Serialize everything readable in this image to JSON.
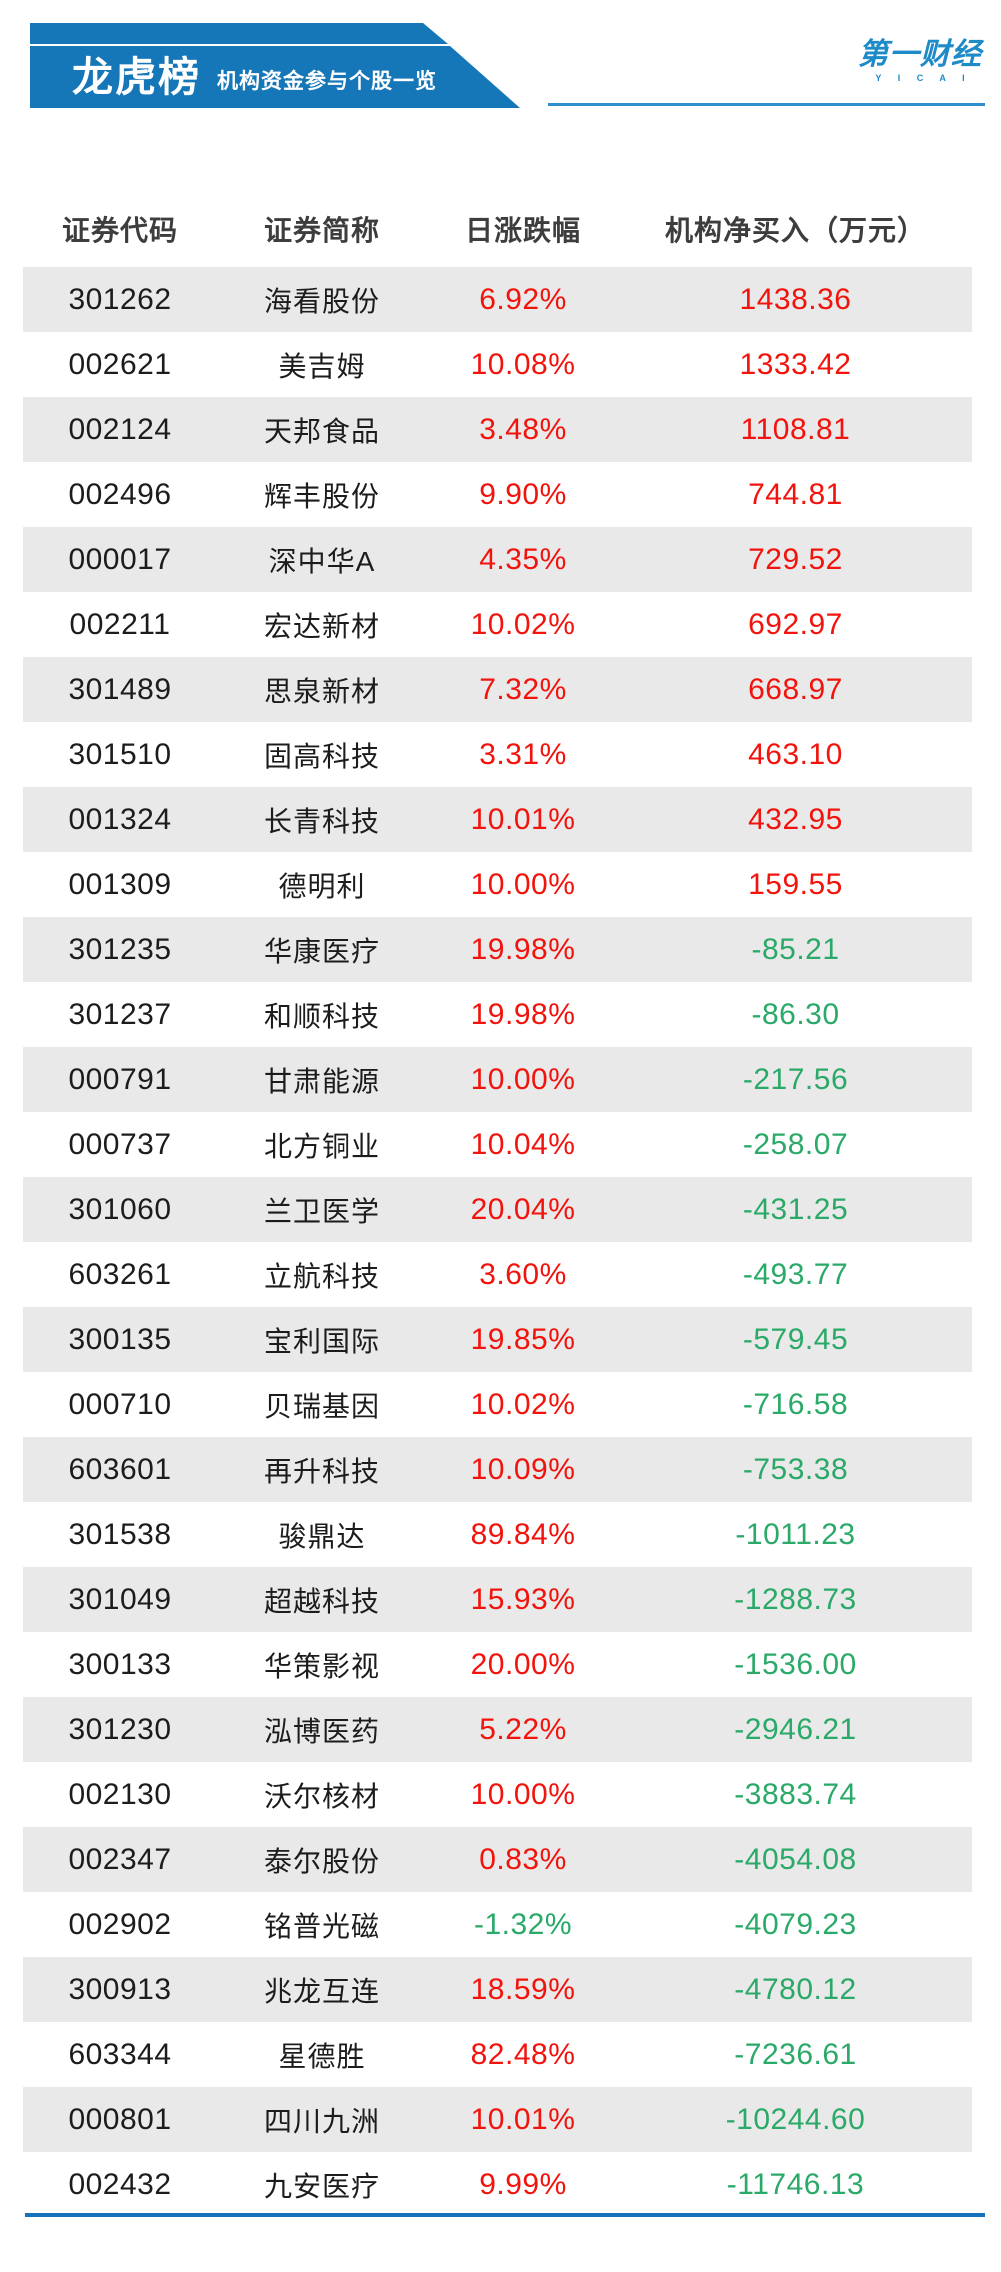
{
  "header": {
    "title": "龙虎榜",
    "subtitle": "机构资金参与个股一览",
    "logo_text": "第一财经",
    "logo_sub": "Y I C A I"
  },
  "chart_data": {
    "type": "table",
    "title": "龙虎榜 机构资金参与个股一览",
    "columns": [
      "证券代码",
      "证券简称",
      "日涨跌幅",
      "机构净买入（万元）"
    ],
    "rows": [
      [
        "301262",
        "海看股份",
        "6.92%",
        "1438.36"
      ],
      [
        "002621",
        "美吉姆",
        "10.08%",
        "1333.42"
      ],
      [
        "002124",
        "天邦食品",
        "3.48%",
        "1108.81"
      ],
      [
        "002496",
        "辉丰股份",
        "9.90%",
        "744.81"
      ],
      [
        "000017",
        "深中华A",
        "4.35%",
        "729.52"
      ],
      [
        "002211",
        "宏达新材",
        "10.02%",
        "692.97"
      ],
      [
        "301489",
        "思泉新材",
        "7.32%",
        "668.97"
      ],
      [
        "301510",
        "固高科技",
        "3.31%",
        "463.10"
      ],
      [
        "001324",
        "长青科技",
        "10.01%",
        "432.95"
      ],
      [
        "001309",
        "德明利",
        "10.00%",
        "159.55"
      ],
      [
        "301235",
        "华康医疗",
        "19.98%",
        "-85.21"
      ],
      [
        "301237",
        "和顺科技",
        "19.98%",
        "-86.30"
      ],
      [
        "000791",
        "甘肃能源",
        "10.00%",
        "-217.56"
      ],
      [
        "000737",
        "北方铜业",
        "10.04%",
        "-258.07"
      ],
      [
        "301060",
        "兰卫医学",
        "20.04%",
        "-431.25"
      ],
      [
        "603261",
        "立航科技",
        "3.60%",
        "-493.77"
      ],
      [
        "300135",
        "宝利国际",
        "19.85%",
        "-579.45"
      ],
      [
        "000710",
        "贝瑞基因",
        "10.02%",
        "-716.58"
      ],
      [
        "603601",
        "再升科技",
        "10.09%",
        "-753.38"
      ],
      [
        "301538",
        "骏鼎达",
        "89.84%",
        "-1011.23"
      ],
      [
        "301049",
        "超越科技",
        "15.93%",
        "-1288.73"
      ],
      [
        "300133",
        "华策影视",
        "20.00%",
        "-1536.00"
      ],
      [
        "301230",
        "泓博医药",
        "5.22%",
        "-2946.21"
      ],
      [
        "002130",
        "沃尔核材",
        "10.00%",
        "-3883.74"
      ],
      [
        "002347",
        "泰尔股份",
        "0.83%",
        "-4054.08"
      ],
      [
        "002902",
        "铭普光磁",
        "-1.32%",
        "-4079.23"
      ],
      [
        "300913",
        "兆龙互连",
        "18.59%",
        "-4780.12"
      ],
      [
        "603344",
        "星德胜",
        "82.48%",
        "-7236.61"
      ],
      [
        "000801",
        "四川九洲",
        "10.01%",
        "-10244.60"
      ],
      [
        "002432",
        "九安医疗",
        "9.99%",
        "-11746.13"
      ]
    ],
    "layout": {
      "row_striping": "odd rows grey, even rows white",
      "positive_color_meaning": "red = rise / net buy",
      "negative_color_meaning": "green = fall / net sell"
    }
  },
  "colors": {
    "up_red": "#f2130c",
    "down_green": "#2aa968",
    "banner_blue": "#1576b8",
    "logo_blue": "#1e8ac8",
    "row_alt_grey": "#e9e9e9"
  }
}
